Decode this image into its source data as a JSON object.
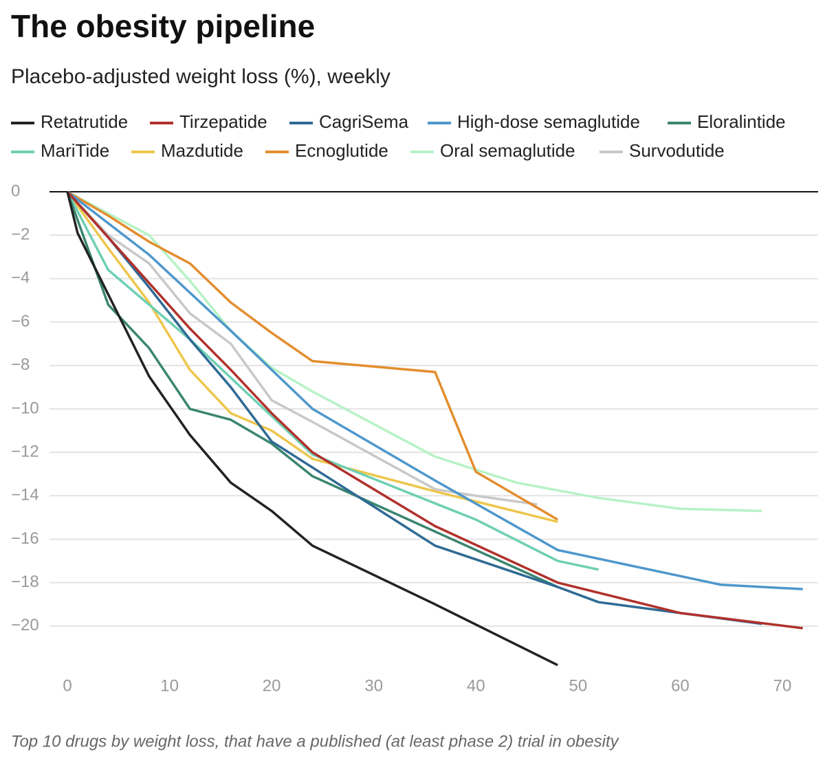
{
  "chart_data": {
    "type": "line",
    "title": "The obesity pipeline",
    "subtitle": "Placebo-adjusted weight loss (%), weekly",
    "footnote": "Top 10 drugs by weight loss, that have a published (at least phase 2) trial in obesity",
    "xlim": [
      -1.75,
      73.5
    ],
    "ylim": [
      -22,
      0
    ],
    "xticks": [
      0,
      10,
      20,
      30,
      40,
      50,
      60,
      70
    ],
    "yticks": [
      0,
      {
        "value": -2,
        "label": "−2"
      },
      {
        "value": -4,
        "label": "−4"
      },
      {
        "value": -6,
        "label": "−6"
      },
      {
        "value": -8,
        "label": "−8"
      },
      {
        "value": -10,
        "label": "−10"
      },
      {
        "value": -12,
        "label": "−12"
      },
      {
        "value": -14,
        "label": "−14"
      },
      {
        "value": -16,
        "label": "−16"
      },
      {
        "value": -18,
        "label": "−18"
      },
      {
        "value": -20,
        "label": "−20"
      }
    ],
    "grid": true,
    "series": [
      {
        "name": "Retatrutide",
        "color": "#222222",
        "x": [
          0,
          1,
          8,
          12,
          16,
          20,
          24,
          36,
          48
        ],
        "values": [
          0,
          -1.9,
          -8.5,
          -11.2,
          -13.4,
          -14.7,
          -16.3,
          -19.0,
          -21.8
        ]
      },
      {
        "name": "Tirzepatide",
        "color": "#b0312b",
        "x": [
          0,
          4,
          8,
          12,
          16,
          20,
          24,
          36,
          48,
          60,
          72
        ],
        "values": [
          0,
          -2.1,
          -4.2,
          -6.3,
          -8.2,
          -10.2,
          -12.0,
          -15.4,
          -18.0,
          -19.4,
          -20.1
        ]
      },
      {
        "name": "CagriSema",
        "color": "#2f6a94",
        "x": [
          0,
          4,
          8,
          12,
          16,
          20,
          24,
          36,
          48,
          52,
          60,
          68
        ],
        "values": [
          0,
          -2.1,
          -4.4,
          -6.8,
          -9.0,
          -11.5,
          -12.7,
          -16.3,
          -18.2,
          -18.9,
          -19.4,
          -19.9
        ]
      },
      {
        "name": "High-dose semaglutide",
        "color": "#4e97cc",
        "x": [
          0,
          8,
          16,
          24,
          36,
          48,
          64,
          72
        ],
        "values": [
          0,
          -2.9,
          -6.4,
          -10.0,
          -13.3,
          -16.5,
          -18.1,
          -18.3
        ]
      },
      {
        "name": "Eloralintide",
        "color": "#3a8570",
        "x": [
          0,
          4,
          8,
          12,
          16,
          20,
          24,
          48
        ],
        "values": [
          0,
          -5.2,
          -7.2,
          -10.0,
          -10.5,
          -11.6,
          -13.1,
          -18.2
        ]
      },
      {
        "name": "MariTide",
        "color": "#6ecfb3",
        "x": [
          0,
          4,
          12,
          24,
          40,
          48,
          52
        ],
        "values": [
          0,
          -3.6,
          -6.8,
          -12.1,
          -15.1,
          -17.0,
          -17.4
        ]
      },
      {
        "name": "Mazdutide",
        "color": "#eec64b",
        "x": [
          0,
          4,
          8,
          12,
          16,
          20,
          24,
          36,
          48
        ],
        "values": [
          0,
          -2.6,
          -5.1,
          -8.2,
          -10.2,
          -11.0,
          -12.3,
          -13.8,
          -15.2
        ]
      },
      {
        "name": "Ecnoglutide",
        "color": "#e38d2e",
        "x": [
          0,
          4,
          8,
          12,
          16,
          20,
          24,
          36,
          40,
          48
        ],
        "values": [
          0,
          -1.1,
          -2.3,
          -3.3,
          -5.1,
          -6.5,
          -7.8,
          -8.3,
          -12.9,
          -15.1
        ]
      },
      {
        "name": "Oral semaglutide",
        "color": "#b7f2c6",
        "x": [
          0,
          8,
          12,
          16,
          20,
          24,
          36,
          44,
          52,
          60,
          68
        ],
        "values": [
          0,
          -2.0,
          -4.1,
          -6.4,
          -8.1,
          -9.2,
          -12.2,
          -13.4,
          -14.1,
          -14.6,
          -14.7
        ]
      },
      {
        "name": "Survodutide",
        "color": "#c8c8c8",
        "x": [
          0,
          4,
          8,
          12,
          16,
          20,
          24,
          36,
          40,
          46
        ],
        "values": [
          0,
          -2.0,
          -3.3,
          -5.6,
          -7.0,
          -9.6,
          -10.6,
          -13.7,
          -14.0,
          -14.4
        ]
      }
    ]
  }
}
